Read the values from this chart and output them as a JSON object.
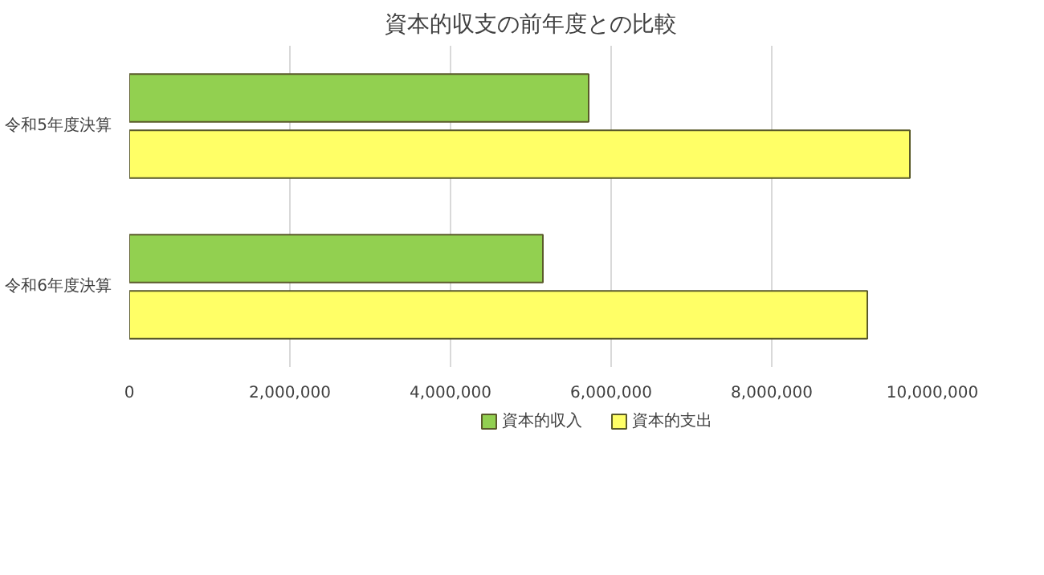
{
  "chart_data": {
    "type": "bar",
    "orientation": "horizontal",
    "title": "資本的収支の前年度との比較",
    "categories": [
      "令和5年度決算",
      "令和6年度決算"
    ],
    "series": [
      {
        "name": "資本的収入",
        "color": "#92d050",
        "values": [
          5720000,
          5150000
        ]
      },
      {
        "name": "資本的支出",
        "color": "#ffff66",
        "values": [
          9720000,
          9190000
        ]
      }
    ],
    "xlim": [
      0,
      10000000
    ],
    "xticks": [
      0,
      {
        "value": 2000000,
        "label": "2,000,000"
      },
      {
        "value": 4000000,
        "label": "4,000,000"
      },
      {
        "value": 6000000,
        "label": "6,000,000"
      },
      {
        "value": 8000000,
        "label": "8,000,000"
      },
      {
        "value": 10000000,
        "label": "10,000,000"
      }
    ],
    "grid": "x",
    "legend": "bottom"
  }
}
